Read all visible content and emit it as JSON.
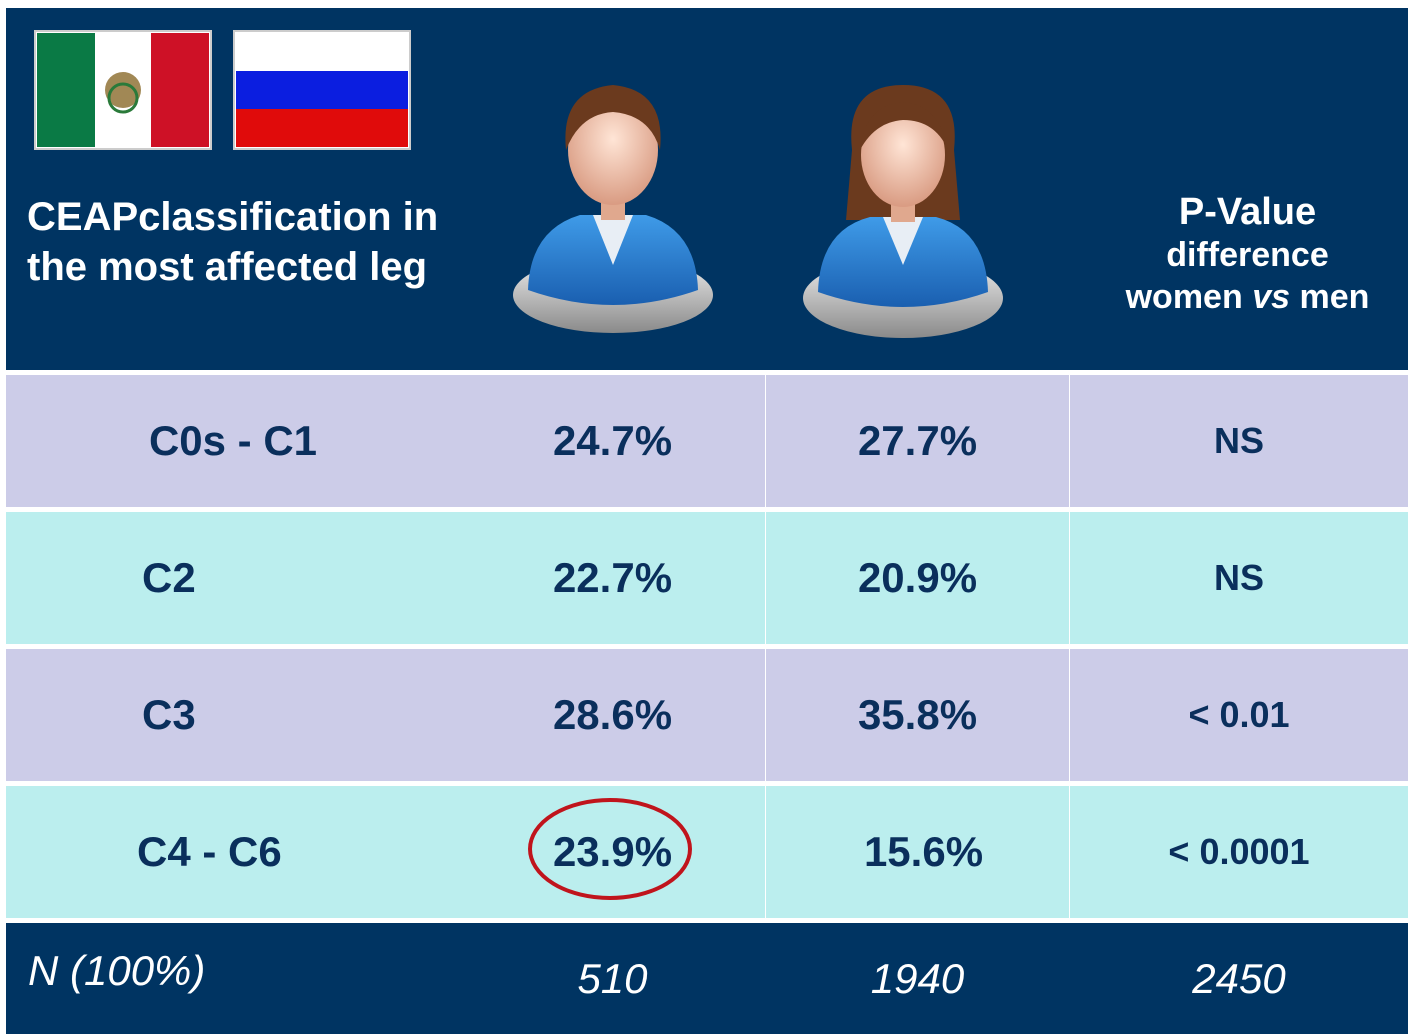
{
  "header": {
    "label_column": "CEAPclassification in the most affected leg",
    "p_value": {
      "title": "P-Value",
      "subtitle": "difference",
      "line": [
        "women",
        "vs",
        "men"
      ]
    }
  },
  "table": {
    "rows": [
      [
        "C0s - C1",
        "24.7%",
        "27.7%",
        "NS"
      ],
      [
        "C2",
        "22.7%",
        "20.9%",
        "NS"
      ],
      [
        "C3",
        "28.6%",
        "35.8%",
        "< 0.01"
      ],
      [
        "C4 - C6",
        "23.9%",
        "15.6%",
        "< 0.0001"
      ]
    ]
  },
  "footer": {
    "label": "N (100%)",
    "values": [
      510,
      1940,
      2450
    ]
  }
}
